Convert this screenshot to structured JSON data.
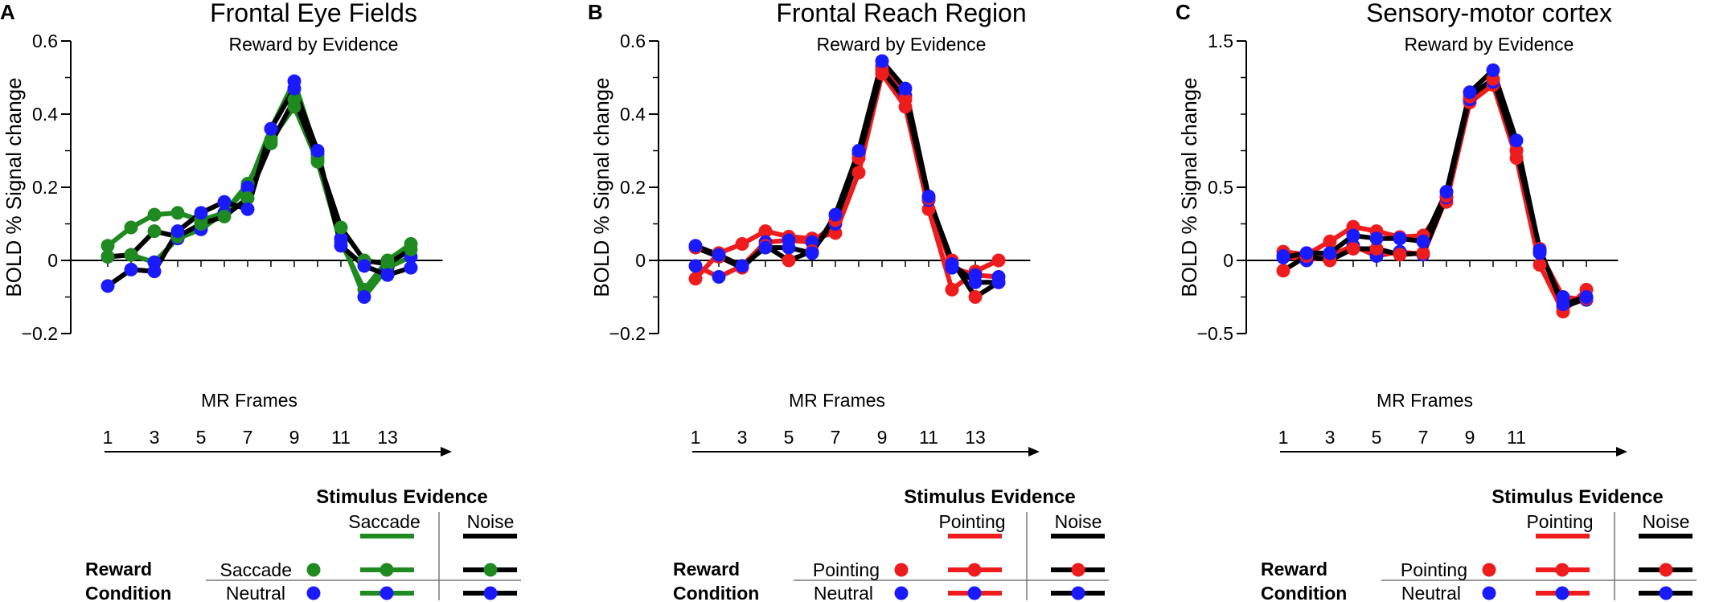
{
  "colors": {
    "saccade": "#1f8a1f",
    "pointing": "#ee1c1c",
    "noise": "#000000",
    "neutral_marker": "#1a1aff",
    "axis": "#000000",
    "divider": "#777777"
  },
  "shared": {
    "subtitle": "Reward by Evidence",
    "ylabel": "BOLD % Signal change",
    "xlabel": "MR Frames",
    "legend_header": "Stimulus Evidence",
    "reward_label_1": "Reward",
    "reward_label_2": "Condition",
    "noise_label": "Noise",
    "neutral_label": "Neutral"
  },
  "chart_data": [
    {
      "panel": "A",
      "type": "line",
      "title": "Frontal Eye Fields",
      "subtitle": "Reward by Evidence",
      "xlabel": "MR Frames",
      "ylabel": "BOLD % Signal change",
      "ylim": [
        -0.2,
        0.6
      ],
      "yticks": [
        -0.2,
        0,
        0.2,
        0.4,
        0.6
      ],
      "yticklabels": [
        "−0.2",
        "0",
        "0.2",
        "0.4",
        "0.6"
      ],
      "xlim": [
        0.6,
        14.6
      ],
      "xticks": [
        1,
        3,
        5,
        7,
        9,
        11,
        13
      ],
      "evidence_label": "Saccade",
      "reward_label": "Saccade",
      "x": [
        1,
        2,
        3,
        4,
        5,
        6,
        7,
        8,
        9,
        10,
        11,
        12,
        13,
        14
      ],
      "series": [
        {
          "evidence": "evidence",
          "reward": "reward",
          "values": [
            0.04,
            0.09,
            0.125,
            0.13,
            0.11,
            0.13,
            0.21,
            0.33,
            0.42,
            0.27,
            0.05,
            -0.08,
            0.0,
            0.045
          ]
        },
        {
          "evidence": "evidence",
          "reward": "neutral",
          "values": [
            0.01,
            0.015,
            -0.005,
            0.06,
            0.085,
            0.13,
            0.2,
            0.36,
            0.49,
            0.29,
            0.06,
            -0.1,
            -0.02,
            0.01
          ]
        },
        {
          "evidence": "noise",
          "reward": "reward",
          "values": [
            0.01,
            0.015,
            0.08,
            0.065,
            0.1,
            0.12,
            0.17,
            0.32,
            0.44,
            0.28,
            0.09,
            0.0,
            -0.01,
            0.03
          ]
        },
        {
          "evidence": "noise",
          "reward": "neutral",
          "values": [
            -0.07,
            -0.025,
            -0.03,
            0.08,
            0.13,
            0.16,
            0.14,
            0.36,
            0.47,
            0.3,
            0.04,
            -0.015,
            -0.04,
            -0.02
          ]
        }
      ]
    },
    {
      "panel": "B",
      "type": "line",
      "title": "Frontal Reach Region",
      "subtitle": "Reward by Evidence",
      "xlabel": "MR Frames",
      "ylabel": "BOLD % Signal change",
      "ylim": [
        -0.2,
        0.6
      ],
      "yticks": [
        -0.2,
        0,
        0.2,
        0.4,
        0.6
      ],
      "yticklabels": [
        "−0.2",
        "0",
        "0.2",
        "0.4",
        "0.6"
      ],
      "xlim": [
        0.6,
        14.6
      ],
      "xticks": [
        1,
        3,
        5,
        7,
        9,
        11,
        13
      ],
      "evidence_label": "Pointing",
      "reward_label": "Pointing",
      "x": [
        1,
        2,
        3,
        4,
        5,
        6,
        7,
        8,
        9,
        10,
        11,
        12,
        13,
        14
      ],
      "series": [
        {
          "evidence": "evidence",
          "reward": "reward",
          "values": [
            -0.05,
            0.02,
            0.045,
            0.08,
            0.065,
            0.06,
            0.075,
            0.24,
            0.51,
            0.42,
            0.14,
            -0.08,
            -0.03,
            0.0
          ]
        },
        {
          "evidence": "evidence",
          "reward": "neutral",
          "values": [
            -0.015,
            -0.045,
            -0.015,
            0.05,
            0.055,
            0.05,
            0.1,
            0.29,
            0.53,
            0.45,
            0.165,
            -0.02,
            -0.04,
            -0.045
          ]
        },
        {
          "evidence": "noise",
          "reward": "reward",
          "values": [
            0.035,
            0.01,
            -0.02,
            0.04,
            0.0,
            0.025,
            0.11,
            0.28,
            0.52,
            0.44,
            0.17,
            0.0,
            -0.1,
            -0.06
          ]
        },
        {
          "evidence": "noise",
          "reward": "neutral",
          "values": [
            0.04,
            0.015,
            -0.015,
            0.035,
            0.035,
            0.02,
            0.125,
            0.3,
            0.545,
            0.47,
            0.175,
            -0.01,
            -0.06,
            -0.06
          ]
        }
      ]
    },
    {
      "panel": "C",
      "type": "line",
      "title": "Sensory-motor cortex",
      "subtitle": "Reward by Evidence",
      "xlabel": "MR Frames",
      "ylabel": "BOLD % Signal change",
      "ylim": [
        -0.5,
        1.5
      ],
      "yticks": [
        -0.5,
        0,
        0.5,
        1.5
      ],
      "yticklabels": [
        "−0.5",
        "0",
        "0.5",
        "1.5"
      ],
      "xlim": [
        0.6,
        14.6
      ],
      "xticks": [
        1,
        3,
        5,
        7,
        9,
        11
      ],
      "evidence_label": "Pointing",
      "reward_label": "Pointing",
      "x": [
        1,
        2,
        3,
        4,
        5,
        6,
        7,
        8,
        9,
        10,
        11,
        12,
        13,
        14
      ],
      "series": [
        {
          "evidence": "evidence",
          "reward": "reward",
          "values": [
            0.06,
            0.04,
            0.13,
            0.23,
            0.2,
            0.16,
            0.17,
            0.4,
            1.08,
            1.2,
            0.7,
            -0.03,
            -0.35,
            -0.2
          ]
        },
        {
          "evidence": "evidence",
          "reward": "neutral",
          "values": [
            0.03,
            0.0,
            0.03,
            0.1,
            0.03,
            0.06,
            0.04,
            0.43,
            1.1,
            1.22,
            0.75,
            0.05,
            -0.25,
            -0.27
          ]
        },
        {
          "evidence": "noise",
          "reward": "reward",
          "values": [
            -0.07,
            0.03,
            0.0,
            0.08,
            0.08,
            0.04,
            0.05,
            0.44,
            1.12,
            1.24,
            0.75,
            0.08,
            -0.32,
            -0.26
          ]
        },
        {
          "evidence": "noise",
          "reward": "neutral",
          "values": [
            0.02,
            0.05,
            0.05,
            0.17,
            0.15,
            0.15,
            0.13,
            0.47,
            1.15,
            1.3,
            0.82,
            0.07,
            -0.3,
            -0.25
          ]
        }
      ]
    }
  ]
}
